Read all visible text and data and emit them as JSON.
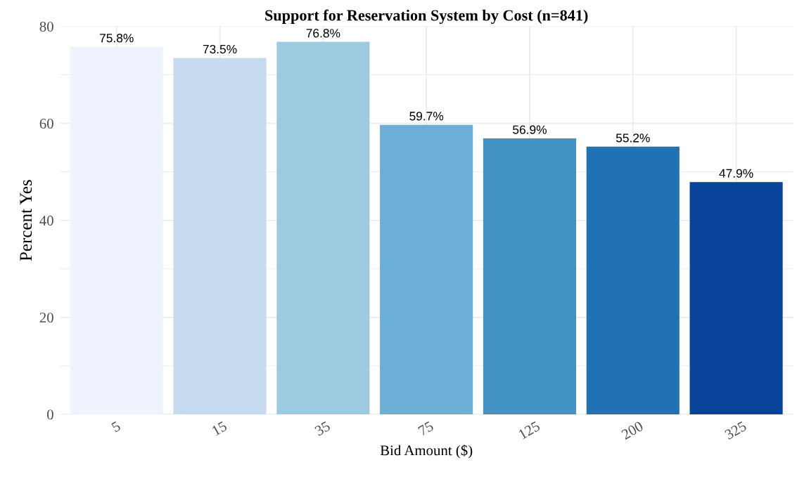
{
  "chart_data": {
    "type": "bar",
    "title": "Support for Reservation System by Cost (n=841)",
    "xlabel": "Bid Amount ($)",
    "ylabel": "Percent Yes",
    "categories": [
      "5",
      "15",
      "35",
      "75",
      "125",
      "200",
      "325"
    ],
    "values": [
      75.8,
      73.5,
      76.8,
      59.7,
      56.9,
      55.2,
      47.9
    ],
    "value_labels": [
      "75.8%",
      "73.5%",
      "76.8%",
      "59.7%",
      "56.9%",
      "55.2%",
      "47.9%"
    ],
    "colors": [
      "#eef3fd",
      "#c6dbef",
      "#9ecae1",
      "#6baed6",
      "#4292c6",
      "#2171b5",
      "#08459a"
    ],
    "ylim": [
      0,
      80
    ],
    "yticks": [
      0,
      20,
      40,
      60,
      80
    ],
    "grid": true
  }
}
